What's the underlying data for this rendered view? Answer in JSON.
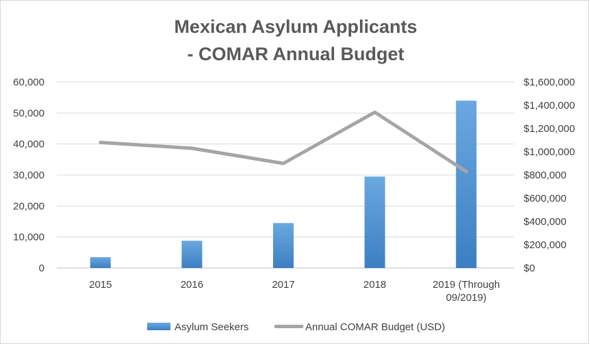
{
  "chart_data": {
    "type": "bar",
    "title_lines": [
      "Mexican Asylum Applicants",
      "- COMAR Annual Budget"
    ],
    "categories": [
      "2015",
      "2016",
      "2017",
      "2018",
      "2019 (Through 09/2019)"
    ],
    "category_lines": [
      [
        "2015"
      ],
      [
        "2016"
      ],
      [
        "2017"
      ],
      [
        "2018"
      ],
      [
        "2019 (Through",
        "09/2019)"
      ]
    ],
    "series": [
      {
        "name": "Asylum Seekers",
        "type": "bar",
        "axis": "left",
        "values": [
          3500,
          8800,
          14500,
          29500,
          54000
        ]
      },
      {
        "name": "Annual COMAR Budget (USD)",
        "type": "line",
        "axis": "right",
        "values": [
          1080000,
          1030000,
          900000,
          1340000,
          830000
        ]
      }
    ],
    "ylim_left": [
      0,
      60000
    ],
    "ylim_right": [
      0,
      1600000
    ],
    "yticks_left": [
      "0",
      "10,000",
      "20,000",
      "30,000",
      "40,000",
      "50,000",
      "60,000"
    ],
    "yticks_right": [
      "$0",
      "$200,000",
      "$400,000",
      "$600,000",
      "$800,000",
      "$1,000,000",
      "$1,200,000",
      "$1,400,000",
      "$1,600,000"
    ],
    "grid": true,
    "legend_position": "bottom",
    "colors": {
      "bar": "#5b9bd5",
      "bar_dark": "#3c7fc2",
      "line": "#a5a5a5",
      "grid": "#d9d9d9",
      "text": "#595959"
    }
  }
}
